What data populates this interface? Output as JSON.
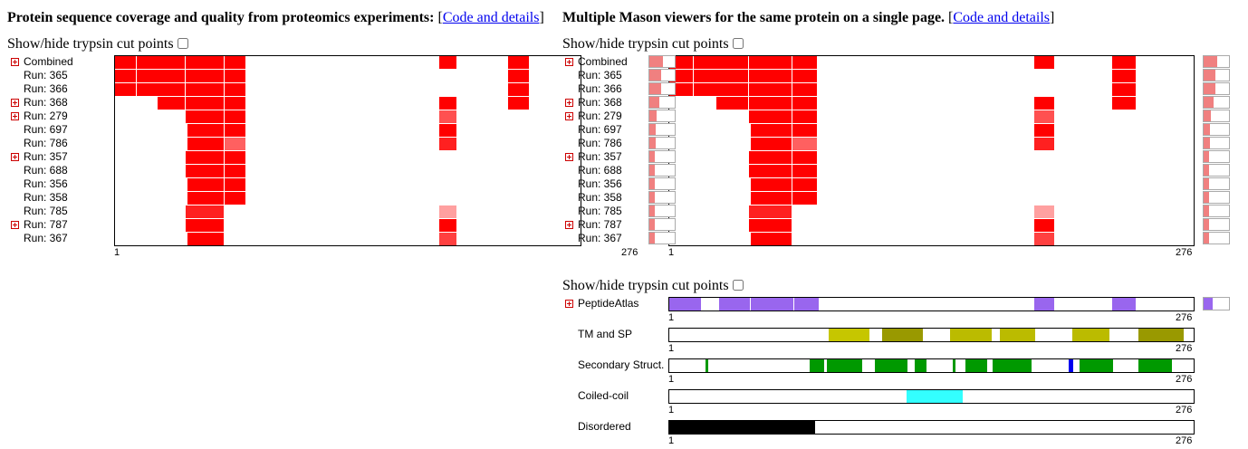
{
  "left_panel": {
    "heading_bold": "Protein sequence coverage and quality from proteomics experiments:",
    "heading_link": "Code and details",
    "toggle_label": "Show/hide trypsin cut points",
    "axis_start": "1",
    "axis_end": "276"
  },
  "right_panel": {
    "heading_bold": "Multiple Mason viewers for the same protein on a single page.",
    "heading_link": "Code and details",
    "toggle_label": "Show/hide trypsin cut points",
    "axis_start": "1",
    "axis_end": "276"
  },
  "annotation_panel": {
    "toggle_label": "Show/hide trypsin cut points",
    "axis_start": "1",
    "axis_end": "276"
  },
  "sequence_length": 276,
  "runs": [
    {
      "label": "Combined",
      "expandable": true,
      "segments": [
        [
          1,
          13,
          "#ff0000"
        ],
        [
          14,
          42,
          "#ff0000"
        ],
        [
          43,
          65,
          "#ff0000"
        ],
        [
          66,
          78,
          "#ff0000"
        ],
        [
          193,
          203,
          "#ff0000"
        ],
        [
          234,
          246,
          "#ff0000"
        ]
      ],
      "summary_fraction": 0.55
    },
    {
      "label": "Run: 365",
      "expandable": false,
      "segments": [
        [
          1,
          13,
          "#ff0000"
        ],
        [
          14,
          42,
          "#ff0000"
        ],
        [
          43,
          65,
          "#ff0000"
        ],
        [
          66,
          78,
          "#ff0000"
        ],
        [
          234,
          246,
          "#ff0000"
        ]
      ],
      "summary_fraction": 0.45
    },
    {
      "label": "Run: 366",
      "expandable": false,
      "segments": [
        [
          1,
          13,
          "#ff0000"
        ],
        [
          14,
          42,
          "#ff0000"
        ],
        [
          43,
          65,
          "#ff0000"
        ],
        [
          66,
          78,
          "#ff0000"
        ],
        [
          234,
          246,
          "#ff0000"
        ]
      ],
      "summary_fraction": 0.45
    },
    {
      "label": "Run: 368",
      "expandable": true,
      "segments": [
        [
          26,
          42,
          "#ff0000"
        ],
        [
          43,
          65,
          "#ff0000"
        ],
        [
          66,
          78,
          "#ff0000"
        ],
        [
          193,
          203,
          "#ff0000"
        ],
        [
          234,
          246,
          "#ff0000"
        ]
      ],
      "summary_fraction": 0.4
    },
    {
      "label": "Run: 279",
      "expandable": true,
      "segments": [
        [
          43,
          65,
          "#ff0000"
        ],
        [
          66,
          78,
          "#ff0000"
        ],
        [
          193,
          203,
          "#ff5050"
        ]
      ],
      "summary_fraction": 0.3
    },
    {
      "label": "Run: 697",
      "expandable": false,
      "segments": [
        [
          44,
          65,
          "#ff0000"
        ],
        [
          66,
          78,
          "#ff0000"
        ],
        [
          193,
          203,
          "#ff0000"
        ]
      ],
      "summary_fraction": 0.25
    },
    {
      "label": "Run: 786",
      "expandable": false,
      "segments": [
        [
          44,
          65,
          "#ff0000"
        ],
        [
          66,
          78,
          "#ff6060"
        ],
        [
          193,
          203,
          "#ff2020"
        ]
      ],
      "summary_fraction": 0.25
    },
    {
      "label": "Run: 357",
      "expandable": true,
      "segments": [
        [
          43,
          65,
          "#ff0000"
        ],
        [
          66,
          78,
          "#ff0000"
        ]
      ],
      "summary_fraction": 0.2
    },
    {
      "label": "Run: 688",
      "expandable": false,
      "segments": [
        [
          43,
          65,
          "#ff0000"
        ],
        [
          66,
          78,
          "#ff0000"
        ]
      ],
      "summary_fraction": 0.2
    },
    {
      "label": "Run: 356",
      "expandable": false,
      "segments": [
        [
          44,
          65,
          "#ff0000"
        ],
        [
          66,
          78,
          "#ff0000"
        ]
      ],
      "summary_fraction": 0.2
    },
    {
      "label": "Run: 358",
      "expandable": false,
      "segments": [
        [
          44,
          65,
          "#ff0000"
        ],
        [
          66,
          78,
          "#ff0000"
        ]
      ],
      "summary_fraction": 0.2
    },
    {
      "label": "Run: 785",
      "expandable": false,
      "segments": [
        [
          43,
          65,
          "#ff2020"
        ],
        [
          193,
          203,
          "#ffa0a0"
        ]
      ],
      "summary_fraction": 0.2
    },
    {
      "label": "Run: 787",
      "expandable": true,
      "segments": [
        [
          43,
          65,
          "#ff0000"
        ],
        [
          193,
          203,
          "#ff0000"
        ]
      ],
      "summary_fraction": 0.2
    },
    {
      "label": "Run: 367",
      "expandable": false,
      "segments": [
        [
          44,
          65,
          "#ff0000"
        ],
        [
          193,
          203,
          "#ff4040"
        ]
      ],
      "summary_fraction": 0.2
    }
  ],
  "annotations": [
    {
      "label": "PeptideAtlas",
      "expandable": true,
      "segments": [
        [
          1,
          17,
          "#9966ee"
        ],
        [
          27,
          43,
          "#9966ee"
        ],
        [
          44,
          66,
          "#9966ee"
        ],
        [
          67,
          79,
          "#9966ee"
        ],
        [
          193,
          203,
          "#9966ee"
        ],
        [
          234,
          246,
          "#9966ee"
        ]
      ],
      "summary_fraction": 0.35,
      "summary_color": "#9966ee"
    },
    {
      "label": "TM and SP",
      "expandable": false,
      "segments": [
        [
          85,
          106,
          "#c6c600"
        ],
        [
          113,
          134,
          "#999900"
        ],
        [
          149,
          170,
          "#bbbb00"
        ],
        [
          175,
          193,
          "#bbbb00"
        ],
        [
          213,
          232,
          "#bbbb00"
        ],
        [
          248,
          271,
          "#999900"
        ]
      ]
    },
    {
      "label": "Secondary Struct.",
      "expandable": false,
      "segments": [
        [
          20,
          21,
          "#009900"
        ],
        [
          75,
          82,
          "#009900"
        ],
        [
          84,
          102,
          "#009900"
        ],
        [
          109,
          126,
          "#009900"
        ],
        [
          130,
          136,
          "#009900"
        ],
        [
          150,
          151,
          "#009900"
        ],
        [
          157,
          168,
          "#009900"
        ],
        [
          171,
          191,
          "#009900"
        ],
        [
          211,
          213,
          "#0000ee"
        ],
        [
          217,
          234,
          "#009900"
        ],
        [
          248,
          265,
          "#009900"
        ]
      ]
    },
    {
      "label": "Coiled-coil",
      "expandable": false,
      "segments": [
        [
          126,
          155,
          "#33ffff"
        ]
      ]
    },
    {
      "label": "Disordered",
      "expandable": false,
      "segments": [
        [
          1,
          77,
          "#000000"
        ]
      ]
    }
  ]
}
